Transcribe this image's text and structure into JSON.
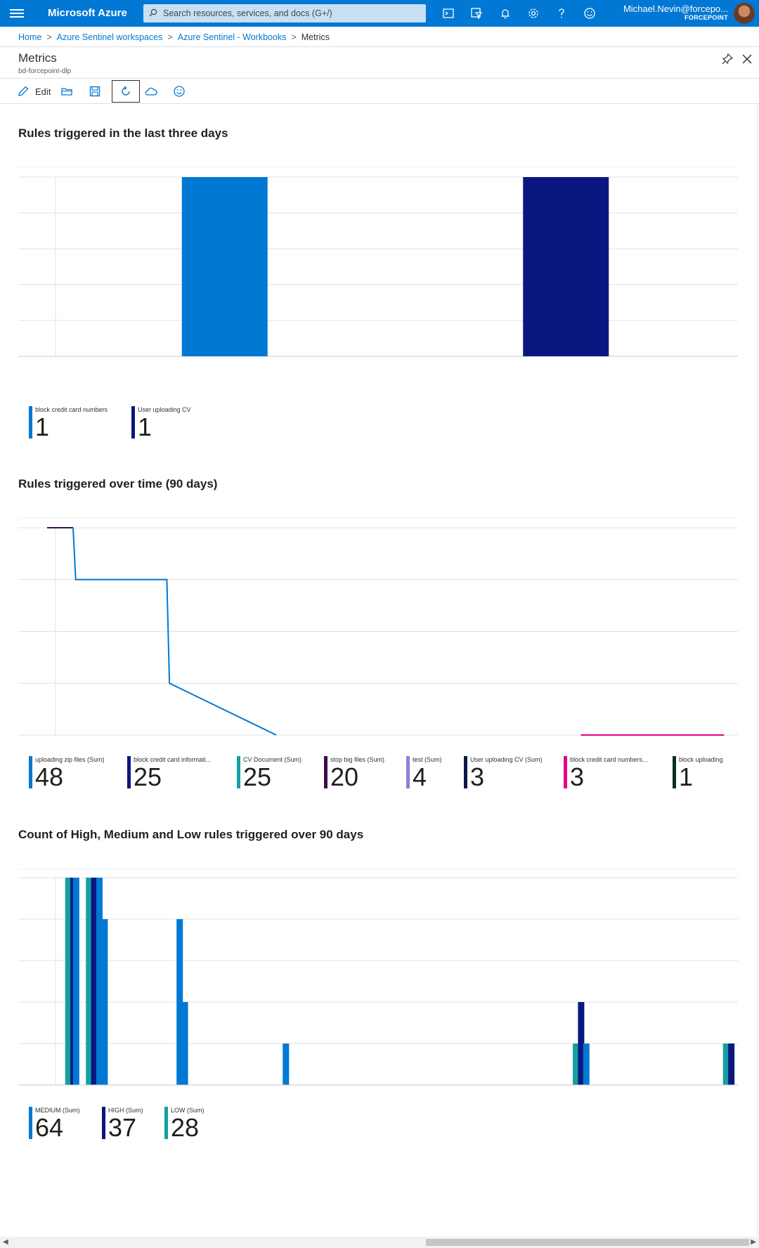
{
  "topbar": {
    "brand": "Microsoft Azure",
    "search_placeholder": "Search resources, services, and docs (G+/)",
    "user_name": "Michael.Nevin@forcepo...",
    "user_org": "FORCEPOINT",
    "icons": [
      "terminal-icon",
      "directory-filter-icon",
      "bell-icon",
      "gear-icon",
      "help-icon",
      "feedback-smiley-icon"
    ]
  },
  "breadcrumb": [
    "Home",
    "Azure Sentinel workspaces",
    "Azure Sentinel - Workbooks",
    "Metrics"
  ],
  "blade": {
    "title": "Metrics",
    "subtitle": "bd-forcepoint-dlp"
  },
  "toolbar": {
    "edit_label": "Edit",
    "icons": [
      "pencil-icon",
      "open-folder-icon",
      "save-icon",
      "refresh-icon",
      "cloud-share-icon",
      "smiley-icon"
    ]
  },
  "colors": {
    "azure_blue": "#0078d4",
    "navy": "#0b1780",
    "teal": "#14a0a0",
    "purple": "#3b0d4f",
    "lavender": "#8e7fd4",
    "dark_navy": "#0c1846",
    "magenta": "#e3008c",
    "dark_green": "#0b2e25"
  },
  "sections": [
    {
      "title": "Rules triggered in the last three days",
      "tiles": [
        {
          "label": "block credit card numbers",
          "value": "1",
          "color": "#0078d4"
        },
        {
          "label": "User uploading CV",
          "value": "1",
          "color": "#0b1780"
        }
      ]
    },
    {
      "title": "Rules triggered over time (90 days)",
      "tiles": [
        {
          "label": "uploading zip files (Sum)",
          "value": "48",
          "color": "#0078d4"
        },
        {
          "label": "block credit card informati...",
          "value": "25",
          "color": "#0b1780"
        },
        {
          "label": "CV Document (Sum)",
          "value": "25",
          "color": "#14a0a0"
        },
        {
          "label": "stop big files (Sum)",
          "value": "20",
          "color": "#3b0d4f"
        },
        {
          "label": "test (Sum)",
          "value": "4",
          "color": "#8e7fd4"
        },
        {
          "label": "User uploading CV (Sum)",
          "value": "3",
          "color": "#0c1846"
        },
        {
          "label": "block credit card numbers...",
          "value": "3",
          "color": "#e3008c"
        },
        {
          "label": "block uploading",
          "value": "1",
          "color": "#0b2e25"
        }
      ]
    },
    {
      "title": "Count of High, Medium and Low rules triggered over 90 days",
      "tiles": [
        {
          "label": "MEDIUM (Sum)",
          "value": "64",
          "color": "#0078d4"
        },
        {
          "label": "HIGH (Sum)",
          "value": "37",
          "color": "#0b1780"
        },
        {
          "label": "LOW (Sum)",
          "value": "28",
          "color": "#14a0a0"
        }
      ]
    }
  ],
  "chart_data": [
    {
      "type": "bar",
      "categories": [
        "block credit card numbers",
        "User uploading CV"
      ],
      "values": [
        1,
        1
      ],
      "colors": [
        "#0078d4",
        "#0b1780"
      ],
      "ylim": [
        0,
        1
      ],
      "yticks": [
        "0",
        "0.2",
        "0.4",
        "0.6",
        "0.8",
        "1"
      ],
      "grid": true
    },
    {
      "type": "line",
      "xticks": [
        "Jan 17",
        "Jan 19",
        "Jan 21",
        "Jan 23",
        "Jan 25",
        "Jan 27",
        "Jan 29",
        "Jan 31",
        "February",
        "Feb 3",
        "Feb 5",
        "Feb 7",
        "Feb 9",
        "Feb 11"
      ],
      "yticks": [
        "1",
        "2",
        "3",
        "4",
        "5"
      ],
      "ylim": [
        1,
        5
      ],
      "series": [
        {
          "name": "stop big files (Sum)",
          "color": "#3b0d4f",
          "points": [
            [
              "Jan 16",
              5
            ],
            [
              "Jan 17",
              5
            ]
          ]
        },
        {
          "name": "uploading zip files (Sum)",
          "color": "#0078d4",
          "points": [
            [
              "Jan 17",
              5
            ],
            [
              "Jan 17.1",
              4
            ],
            [
              "Jan 20.6",
              4
            ],
            [
              "Jan 20.7",
              2
            ],
            [
              "Jan 24.8",
              1
            ]
          ]
        },
        {
          "name": "block credit card numbers...",
          "color": "#e3008c",
          "points": [
            [
              "Feb 5.5",
              1
            ],
            [
              "Feb 11",
              1
            ]
          ]
        }
      ],
      "grid": true
    },
    {
      "type": "bar",
      "xticks": [
        "Jan 17",
        "Jan 19",
        "Jan 21",
        "Jan 23",
        "Jan 25",
        "Jan 27",
        "Jan 29",
        "Jan 31",
        "February",
        "Feb 3",
        "Feb 5",
        "Feb 7",
        "Feb 9",
        "Feb 11"
      ],
      "yticks": [
        "0",
        "1",
        "2",
        "3",
        "4",
        "5"
      ],
      "ylim": [
        0,
        5
      ],
      "series": [
        {
          "name": "LOW (Sum)",
          "color": "#14a0a0",
          "bars": [
            [
              "Jan 16.6",
              5
            ],
            [
              "Jan 17.4",
              5
            ],
            [
              "Feb 5.2",
              1
            ],
            [
              "Feb 11.0",
              1
            ]
          ]
        },
        {
          "name": "HIGH (Sum)",
          "color": "#0b1780",
          "bars": [
            [
              "Jan 16.8",
              5
            ],
            [
              "Jan 17.6",
              5
            ],
            [
              "Feb 5.4",
              2
            ],
            [
              "Feb 11.2",
              1
            ]
          ]
        },
        {
          "name": "MEDIUM (Sum)",
          "color": "#0078d4",
          "bars": [
            [
              "Jan 16.9",
              5
            ],
            [
              "Jan 17.8",
              5
            ],
            [
              "Jan 18.0",
              4
            ],
            [
              "Jan 20.9",
              4
            ],
            [
              "Jan 21.1",
              2
            ],
            [
              "Jan 25.0",
              1
            ],
            [
              "Feb 5.6",
              1
            ]
          ]
        }
      ],
      "grid": true
    }
  ]
}
